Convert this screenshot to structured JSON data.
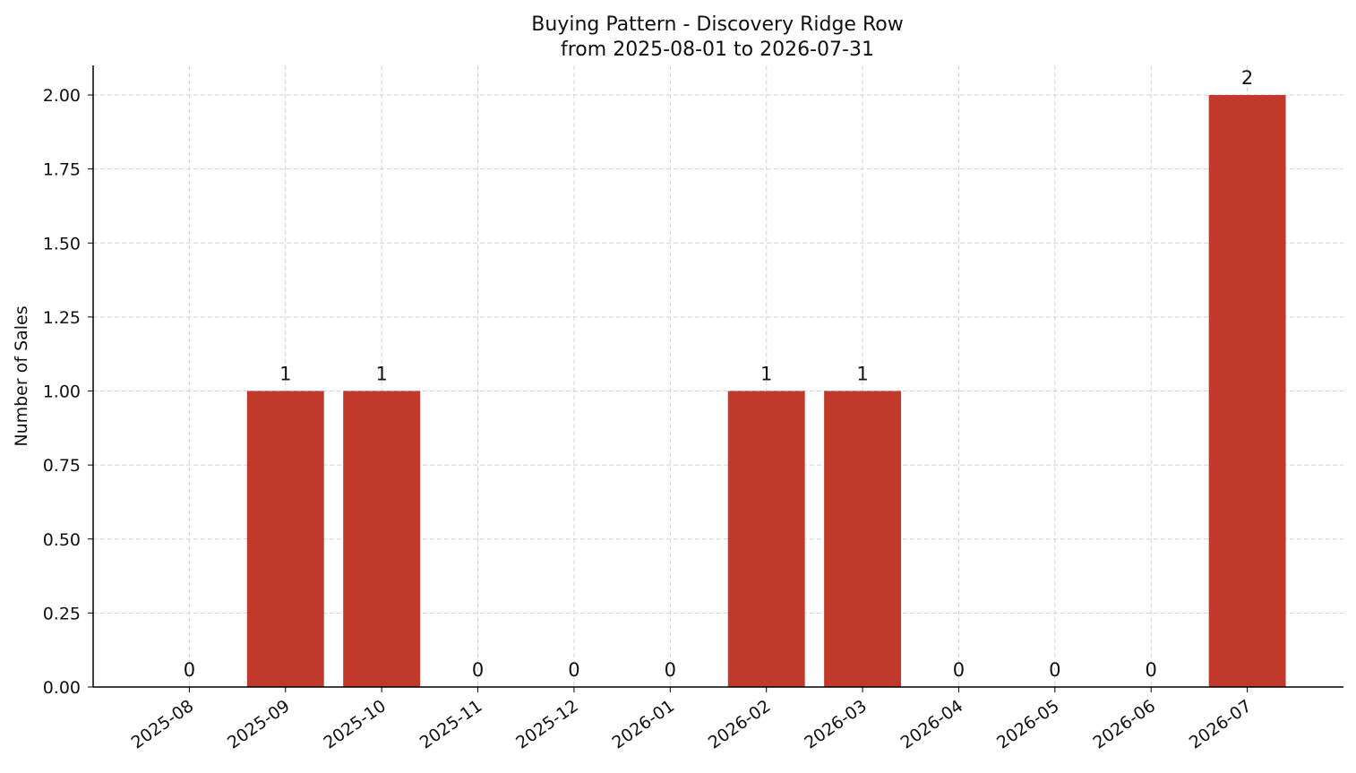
{
  "chart_data": {
    "type": "bar",
    "title": "Buying Pattern - Discovery Ridge Row",
    "subtitle": "from 2025-08-01 to 2026-07-31",
    "y_label": "Number of Sales",
    "categories": [
      "2025-08",
      "2025-09",
      "2025-10",
      "2025-11",
      "2025-12",
      "2026-01",
      "2026-02",
      "2026-03",
      "2026-04",
      "2026-05",
      "2026-06",
      "2026-07"
    ],
    "values": [
      0,
      1,
      1,
      0,
      0,
      0,
      1,
      1,
      0,
      0,
      0,
      2
    ],
    "color": "#c0392b",
    "ylim": [
      0,
      2.1
    ],
    "yticks": [
      {
        "value": 0,
        "label": "0.00"
      },
      {
        "value": 0.25,
        "label": "0.25"
      },
      {
        "value": 0.5,
        "label": "0.50"
      },
      {
        "value": 0.75,
        "label": "0.75"
      },
      {
        "value": 1,
        "label": "1.00"
      },
      {
        "value": 1.25,
        "label": "1.25"
      },
      {
        "value": 1.5,
        "label": "1.50"
      },
      {
        "value": 1.75,
        "label": "1.75"
      },
      {
        "value": 2,
        "label": "2.00"
      }
    ],
    "grid": true
  }
}
